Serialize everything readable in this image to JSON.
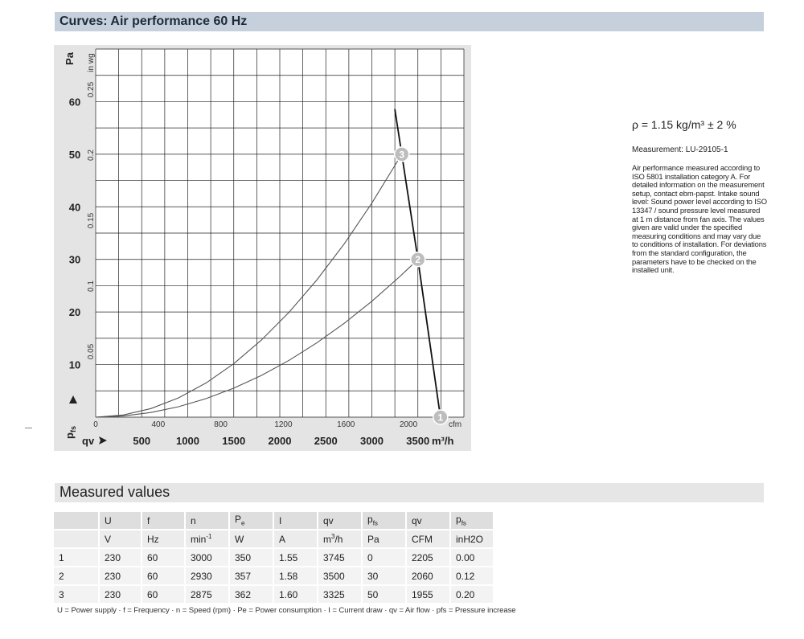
{
  "curves_title": "Curves: Air performance 60 Hz",
  "measured_title": "Measured values",
  "notes": {
    "rho": "ρ = 1.15 kg/m³ ± 2 %",
    "measurement": "Measurement: LU-29105-1",
    "info": "Air performance measured according to ISO 5801 installation category A. For detailed information on the measurement setup, contact ebm-papst. Intake sound level: Sound power level according to ISO 13347 / sound pressure level measured at 1 m distance from fan axis. The values given are valid under the specified measuring conditions and may vary due to conditions of installation. For deviations from the standard configuration, the parameters have to be checked on the installed unit."
  },
  "chart_data": {
    "type": "line",
    "title": "",
    "x_axis_primary": {
      "label": "qv",
      "unit": "m³/h",
      "range": [
        0,
        4000
      ],
      "ticks": [
        500,
        1000,
        1500,
        2000,
        2500,
        3000,
        3500
      ]
    },
    "x_axis_secondary": {
      "unit": "cfm",
      "ticks": [
        0,
        400,
        800,
        1200,
        1600,
        2000
      ]
    },
    "y_axis_primary": {
      "label": "Pa",
      "symbol": "pfs",
      "range": [
        0,
        70
      ],
      "ticks": [
        10,
        20,
        30,
        40,
        50,
        60
      ]
    },
    "y_axis_secondary": {
      "label": "in wg",
      "ticks": [
        0.05,
        0.1,
        0.15,
        0.2,
        0.25
      ]
    },
    "grid": true,
    "series": [
      {
        "x": [
          0,
          300,
          600,
          900,
          1200,
          1500,
          1800,
          2100,
          2400,
          2700,
          3000,
          3325
        ]
      },
      {
        "x": [
          0,
          300,
          600,
          900,
          1200,
          1500,
          1800,
          2100,
          2400,
          2700,
          3000,
          3300,
          3500
        ]
      },
      {
        "x": [
          3250,
          3325,
          3500,
          3745
        ]
      }
    ],
    "points": [
      {
        "label": "1",
        "x": 3745,
        "y": 0
      },
      {
        "label": "2",
        "x": 3500,
        "y": 30
      },
      {
        "label": "3",
        "x": 3325,
        "y": 50
      }
    ]
  },
  "table": {
    "headers": [
      "",
      "U",
      "f",
      "n",
      "P",
      "I",
      "qv",
      "p",
      "qv",
      "p"
    ],
    "header_subs": [
      "",
      "",
      "",
      "",
      "e",
      "",
      "",
      "fs",
      "",
      "fs"
    ],
    "units": [
      "",
      "V",
      "Hz",
      "min",
      "W",
      "A",
      "m",
      "Pa",
      "CFM",
      "inH2O"
    ],
    "units_sups": [
      "",
      "",
      "",
      "-1",
      "",
      "",
      "3",
      "",
      "",
      ""
    ],
    "units_suffix": [
      "",
      "",
      "",
      "",
      "",
      "",
      "/h",
      "",
      "",
      ""
    ],
    "rows": [
      [
        "1",
        "230",
        "60",
        "3000",
        "350",
        "1.55",
        "3745",
        "0",
        "2205",
        "0.00"
      ],
      [
        "2",
        "230",
        "60",
        "2930",
        "357",
        "1.58",
        "3500",
        "30",
        "2060",
        "0.12"
      ],
      [
        "3",
        "230",
        "60",
        "2875",
        "362",
        "1.60",
        "3325",
        "50",
        "1955",
        "0.20"
      ]
    ]
  },
  "legend": "U = Power supply · f = Frequency · n = Speed (rpm) · Pe = Power consumption · I = Current draw · qv = Air flow · pfs = Pressure increase"
}
